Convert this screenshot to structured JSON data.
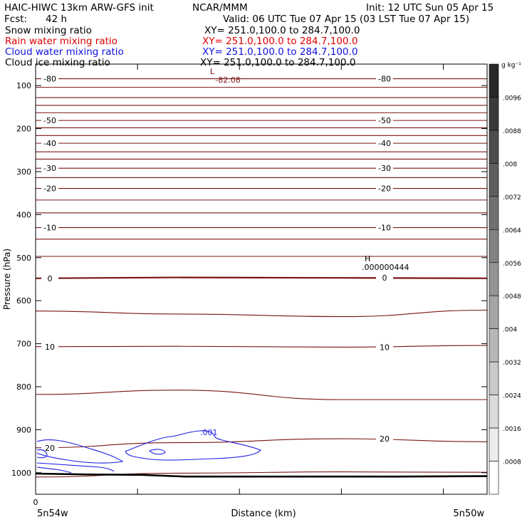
{
  "header": {
    "title": "HAIC-HIWC 13km ARW-GFS init",
    "org": "NCAR/MMM",
    "init": "Init: 12 UTC Sun 05 Apr 15",
    "fcst_label": "Fcst:",
    "fcst_value": "42 h",
    "valid": "Valid: 06 UTC Tue 07 Apr 15 (03 LST Tue 07 Apr 15)"
  },
  "fields": [
    {
      "name": "Snow mixing ratio",
      "xy": "XY= 251.0,100.0 to 284.7,100.0",
      "color": "#000000"
    },
    {
      "name": "Rain water mixing ratio",
      "xy": "XY= 251.0,100.0 to 284.7,100.0",
      "color": "#ff0000"
    },
    {
      "name": "Cloud water mixing ratio",
      "xy": "XY= 251.0,100.0 to 284.7,100.0",
      "color": "#0000ff"
    },
    {
      "name": "Cloud ice mixing ratio",
      "xy": "XY= 251.0,100.0 to 284.7,100.0",
      "color": "#000000"
    }
  ],
  "chart_data": {
    "type": "line",
    "xlabel": "Distance (km)",
    "ylabel": "Pressure (hPa)",
    "x_tick_labels": [
      "0"
    ],
    "x_end_labels": {
      "left": "5n54w",
      "right": "5n50w"
    },
    "y_ticks": [
      100,
      200,
      300,
      400,
      500,
      600,
      700,
      800,
      900,
      1000
    ],
    "ylim": [
      1050,
      50
    ],
    "y_scale": "linear",
    "colors": {
      "temperature": "#7a1414",
      "cloud_water": "#1e1ee6",
      "terrain": "#000000"
    },
    "temperature_contours": [
      {
        "label": "-80",
        "p": [
          84,
          84,
          84,
          84
        ]
      },
      {
        "label": "",
        "p": [
          104,
          104,
          104,
          104
        ]
      },
      {
        "label": "",
        "p": [
          128,
          128,
          128,
          128
        ]
      },
      {
        "label": "",
        "p": [
          146,
          146,
          146,
          146
        ]
      },
      {
        "label": "",
        "p": [
          163,
          163,
          163,
          163
        ]
      },
      {
        "label": "-50",
        "p": [
          181,
          181,
          181,
          181
        ]
      },
      {
        "label": "",
        "p": [
          198,
          198,
          198,
          198
        ]
      },
      {
        "label": "",
        "p": [
          216,
          216,
          216,
          216
        ]
      },
      {
        "label": "-40",
        "p": [
          234,
          234,
          234,
          234
        ]
      },
      {
        "label": "",
        "p": [
          254,
          254,
          254,
          254
        ]
      },
      {
        "label": "",
        "p": [
          271,
          271,
          271,
          271
        ]
      },
      {
        "label": "-30",
        "p": [
          292,
          292,
          292,
          292
        ]
      },
      {
        "label": "",
        "p": [
          314,
          314,
          314,
          314
        ]
      },
      {
        "label": "-20",
        "p": [
          339,
          339,
          339,
          339
        ]
      },
      {
        "label": "",
        "p": [
          366,
          366,
          366,
          366
        ]
      },
      {
        "label": "",
        "p": [
          396,
          396,
          396,
          396
        ]
      },
      {
        "label": "-10",
        "p": [
          430,
          430,
          430,
          430
        ]
      },
      {
        "label": "",
        "p": [
          457,
          457,
          457,
          457
        ]
      },
      {
        "label": "",
        "p": [
          497,
          497,
          497,
          497
        ]
      },
      {
        "label": "0",
        "p": [
          548,
          546,
          547,
          548
        ]
      },
      {
        "label": "",
        "p": [
          624,
          631,
          637,
          622
        ]
      },
      {
        "label": "10",
        "p": [
          707,
          706,
          708,
          704
        ]
      },
      {
        "label": "",
        "p": [
          818,
          808,
          830,
          830
        ]
      },
      {
        "label": "20",
        "p": [
          942,
          930,
          921,
          928
        ]
      },
      {
        "label": "",
        "p": [
          1010,
          1001,
          998,
          999
        ]
      }
    ],
    "cloud_water_contour_label": ".001",
    "highs_lows": [
      {
        "type": "L",
        "value": "-82.08"
      },
      {
        "type": "H",
        "value": ".000000444"
      }
    ],
    "colorbar": {
      "units": "g kg⁻¹",
      "labels": [
        ".0096",
        ".0088",
        ".008",
        ".0072",
        ".0064",
        ".0056",
        ".0048",
        ".004",
        ".0032",
        ".0024",
        ".0016",
        ".0008"
      ]
    }
  }
}
